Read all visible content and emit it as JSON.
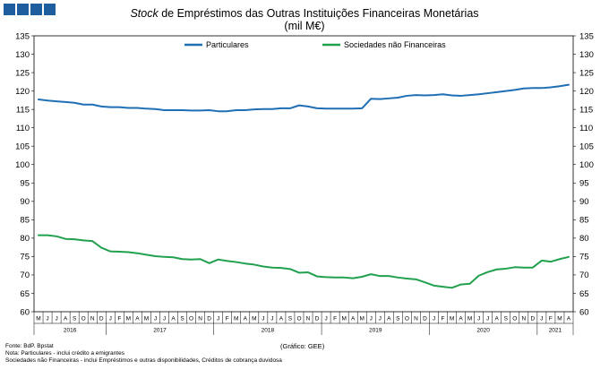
{
  "header": {
    "title_italic": "Stock",
    "title_rest": " de Empréstimos das Outras Instituições Financeiras Monetárias",
    "subtitle": "(mil M€)",
    "brand_color": "#1f5e9e"
  },
  "chart_data": {
    "type": "line",
    "title": "Stock de Empréstimos das Outras Instituições Financeiras Monetárias",
    "ylabel": "(mil M€)",
    "ylim": [
      60,
      135
    ],
    "yticks": [
      60,
      65,
      70,
      75,
      80,
      85,
      90,
      95,
      100,
      105,
      110,
      115,
      120,
      125,
      130,
      135
    ],
    "grid": false,
    "legend_position": "top",
    "x": [
      "M",
      "J",
      "J",
      "A",
      "S",
      "O",
      "N",
      "D",
      "J",
      "F",
      "M",
      "A",
      "M",
      "J",
      "J",
      "A",
      "S",
      "O",
      "N",
      "D",
      "J",
      "F",
      "M",
      "A",
      "M",
      "J",
      "J",
      "A",
      "S",
      "O",
      "N",
      "D",
      "J",
      "F",
      "M",
      "A",
      "M",
      "J",
      "J",
      "A",
      "S",
      "O",
      "N",
      "D",
      "J",
      "F",
      "M",
      "A",
      "M",
      "J",
      "J",
      "A",
      "S",
      "O",
      "N",
      "D",
      "J",
      "F",
      "M",
      "A"
    ],
    "years": [
      {
        "label": "2016",
        "start": 0,
        "count": 8
      },
      {
        "label": "2017",
        "start": 8,
        "count": 12
      },
      {
        "label": "2018",
        "start": 20,
        "count": 12
      },
      {
        "label": "2019",
        "start": 32,
        "count": 12
      },
      {
        "label": "2020",
        "start": 44,
        "count": 12
      },
      {
        "label": "2021",
        "start": 56,
        "count": 4
      }
    ],
    "series": [
      {
        "name": "Particulares",
        "color": "#1f6fb5",
        "values": [
          117.7,
          117.4,
          117.2,
          117.0,
          116.8,
          116.3,
          116.3,
          115.8,
          115.6,
          115.6,
          115.4,
          115.4,
          115.2,
          115.1,
          114.8,
          114.8,
          114.8,
          114.7,
          114.7,
          114.8,
          114.5,
          114.5,
          114.8,
          114.8,
          115.0,
          115.1,
          115.1,
          115.3,
          115.3,
          116.1,
          115.8,
          115.3,
          115.2,
          115.2,
          115.2,
          115.2,
          115.3,
          117.9,
          117.8,
          118.0,
          118.2,
          118.7,
          118.9,
          118.8,
          118.9,
          119.1,
          118.8,
          118.7,
          118.9,
          119.1,
          119.4,
          119.7,
          120.0,
          120.3,
          120.7,
          120.8,
          120.8,
          121.0,
          121.3,
          121.7
        ]
      },
      {
        "name": "Sociedades não Financeiras",
        "color": "#21a04e",
        "values": [
          80.8,
          80.8,
          80.5,
          79.8,
          79.7,
          79.4,
          79.2,
          77.4,
          76.4,
          76.3,
          76.2,
          75.9,
          75.5,
          75.1,
          74.9,
          74.8,
          74.3,
          74.2,
          74.3,
          73.2,
          74.2,
          73.8,
          73.5,
          73.1,
          72.8,
          72.3,
          72.0,
          71.9,
          71.6,
          70.6,
          70.7,
          69.6,
          69.4,
          69.3,
          69.3,
          69.1,
          69.5,
          70.2,
          69.7,
          69.7,
          69.3,
          69.0,
          68.8,
          68.0,
          67.1,
          66.8,
          66.5,
          67.4,
          67.6,
          69.8,
          70.8,
          71.5,
          71.7,
          72.1,
          72.0,
          72.0,
          73.9,
          73.6,
          74.3,
          74.9
        ]
      }
    ]
  },
  "footer": {
    "source": "Fonte: BdP. Bpstat",
    "graph_credit": "Gráfico: GEE",
    "note1": "Nota: Particulares - inclui crédito a emigrantes",
    "note2": "Sociedades não Financeiras - inclui Empréstimos e outras disponibilidades, Créditos de cobrança duvidosa"
  }
}
